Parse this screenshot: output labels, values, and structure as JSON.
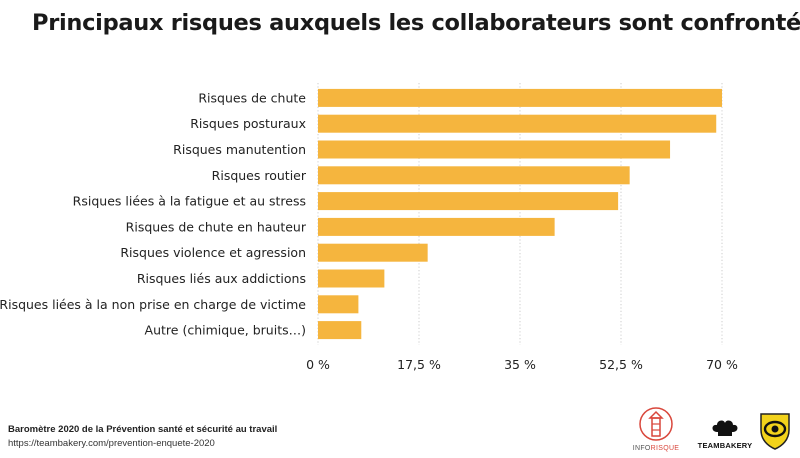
{
  "title": "Principaux risques auxquels les collaborateurs sont confrontés",
  "footer": {
    "source": "Baromètre 2020 de la Prévention santé et sécurité au travail",
    "url": "https://teambakery.com/prevention-enquete-2020"
  },
  "logos": {
    "inforisque": {
      "text_info": "INFO",
      "text_risque": "RISQUE",
      "icon": "lighthouse-icon"
    },
    "teambakery": {
      "text_team": "TEAM",
      "text_bakery": "BAKERY",
      "icon": "chef-hat-icon"
    },
    "shield": {
      "icon": "shield-eye-icon"
    }
  },
  "colors": {
    "bar": "#F5B53E",
    "grid": "#CCCCCC",
    "inforisque_red": "#D9473C",
    "inforisque_gray": "#555555",
    "shield_yellow": "#F2D21B"
  },
  "chart_data": {
    "type": "bar",
    "orientation": "horizontal",
    "categories": [
      "Risques de chute",
      "Risques posturaux",
      "Risques manutention",
      "Risques routier",
      "Rsiques liées à la fatigue et au stress",
      "Risques de chute en hauteur",
      "Risques violence et agression",
      "Risques liés aux addictions",
      "Risques liées à la non prise en charge de victime",
      "Autre (chimique, bruits…)"
    ],
    "values": [
      70,
      69,
      61,
      54,
      52,
      41,
      19,
      11.5,
      7,
      7.5
    ],
    "xlim": [
      0,
      70
    ],
    "ticks": [
      0,
      17.5,
      35,
      52.5,
      70
    ],
    "tick_labels": [
      "0 %",
      "17,5 %",
      "35 %",
      "52,5 %",
      "70 %"
    ],
    "xlabel": "",
    "ylabel": "",
    "grid": true
  }
}
